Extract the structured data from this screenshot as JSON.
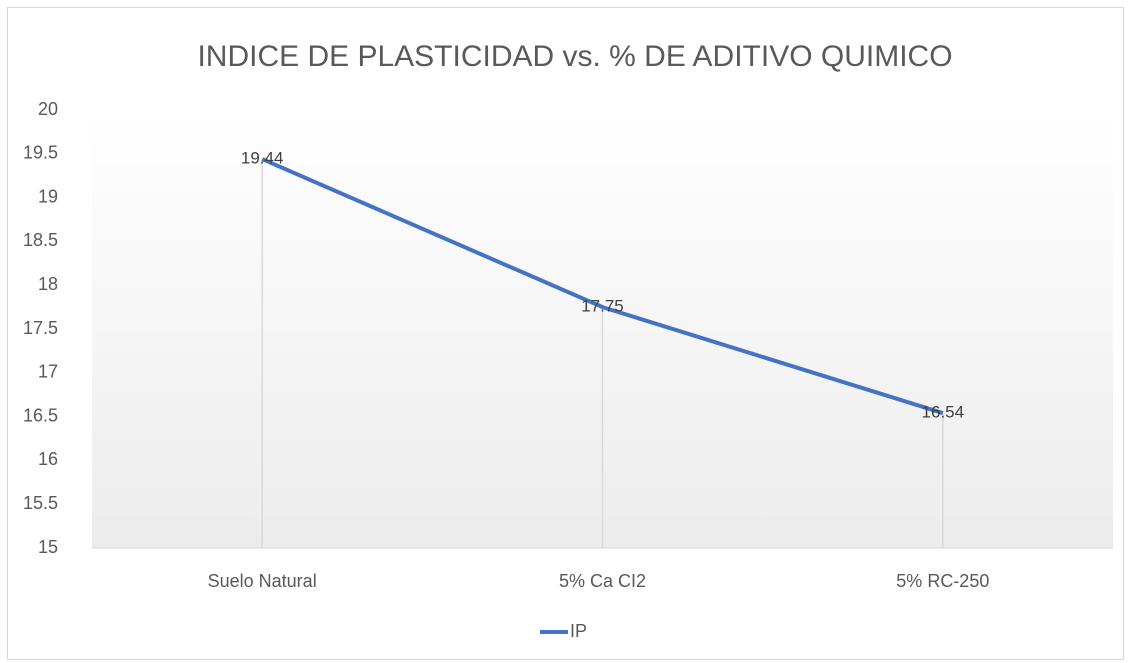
{
  "chart_data": {
    "type": "line",
    "title": "INDICE DE PLASTICIDAD vs. % DE ADITIVO QUIMICO",
    "categories": [
      "Suelo Natural",
      "5% Ca CI2",
      "5% RC-250"
    ],
    "series": [
      {
        "name": "IP",
        "color": "#4472c4",
        "values": [
          19.44,
          17.75,
          16.54
        ]
      }
    ],
    "ylim": [
      15,
      20
    ],
    "yticks": [
      15,
      15.5,
      16,
      16.5,
      17,
      17.5,
      18,
      18.5,
      19,
      19.5,
      20
    ],
    "legend": "bottom",
    "drop_lines": true
  }
}
